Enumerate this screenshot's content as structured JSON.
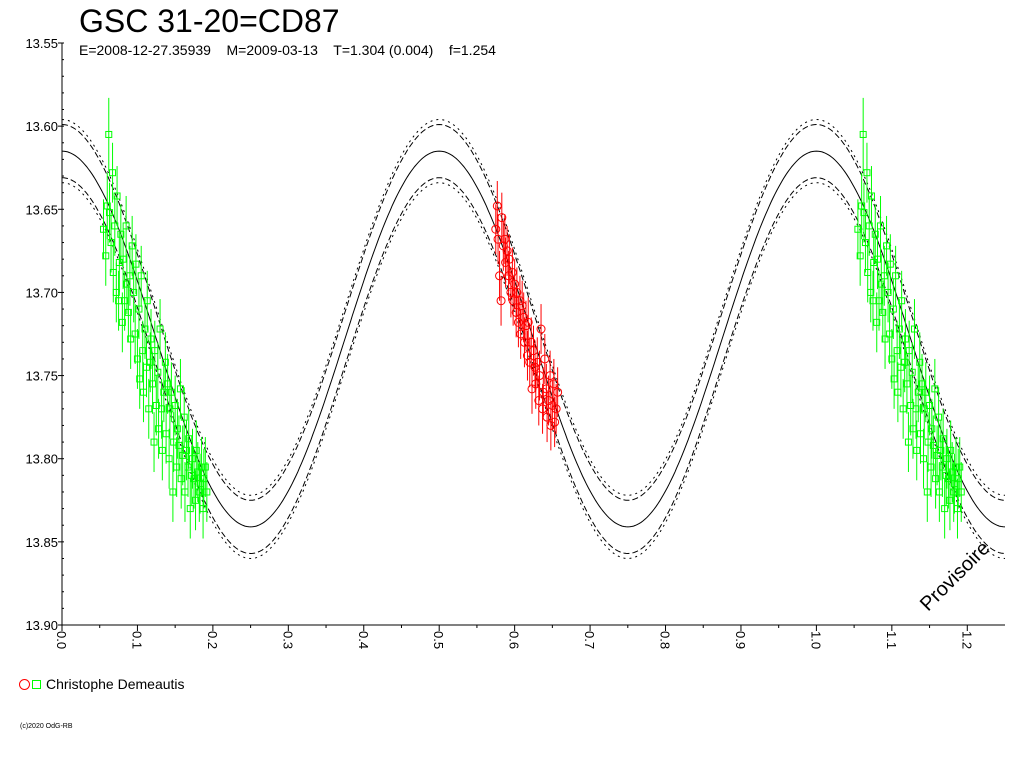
{
  "title": "GSC 31-20=CD87",
  "subtitle": "E=2008-12-27.35939    M=2009-03-13    T=1.304 (0.004)    f=1.254",
  "watermark": "Provisoire",
  "legend": {
    "label": "Christophe Demeautis"
  },
  "footer": "(c)2020 OdG-RB",
  "colors": {
    "series_green": "#00ff00",
    "series_red": "#ff0000",
    "axis": "#000000",
    "background": "#ffffff"
  },
  "chart_data": {
    "type": "scatter",
    "title": "GSC 31-20=CD87",
    "xlabel": "",
    "ylabel": "",
    "xlim": [
      0.0,
      1.25
    ],
    "ylim": [
      13.9,
      13.55
    ],
    "y_inverted": true,
    "grid": false,
    "x_ticks": [
      "0.0",
      "0.1",
      "0.2",
      "0.3",
      "0.4",
      "0.5",
      "0.6",
      "0.7",
      "0.8",
      "0.9",
      "1.0",
      "1.1",
      "1.2"
    ],
    "y_ticks": [
      "13.55",
      "13.60",
      "13.65",
      "13.70",
      "13.75",
      "13.80",
      "13.85",
      "13.90"
    ],
    "model": {
      "shape": "cosine",
      "period_in_phase": 0.5,
      "mean": 13.728,
      "semi_amplitude": 0.113,
      "max_brightness_phases": [
        0.0,
        0.5,
        1.0
      ],
      "envelope_halfwidth": 0.016,
      "envelope2_halfwidth": 0.019
    },
    "series": [
      {
        "name": "Christophe Demeautis",
        "marker": "square",
        "color": "#00ff00",
        "x": [
          0.055,
          0.058,
          0.06,
          0.062,
          0.063,
          0.065,
          0.067,
          0.068,
          0.07,
          0.072,
          0.073,
          0.075,
          0.076,
          0.078,
          0.08,
          0.081,
          0.083,
          0.085,
          0.086,
          0.088,
          0.09,
          0.091,
          0.093,
          0.095,
          0.097,
          0.098,
          0.1,
          0.102,
          0.103,
          0.105,
          0.107,
          0.108,
          0.11,
          0.112,
          0.113,
          0.115,
          0.117,
          0.118,
          0.12,
          0.122,
          0.123,
          0.125,
          0.127,
          0.128,
          0.13,
          0.132,
          0.133,
          0.135,
          0.137,
          0.138,
          0.14,
          0.142,
          0.143,
          0.145,
          0.147,
          0.148,
          0.15,
          0.152,
          0.153,
          0.155,
          0.157,
          0.158,
          0.16,
          0.162,
          0.163,
          0.165,
          0.167,
          0.168,
          0.17,
          0.172,
          0.173,
          0.175,
          0.177,
          0.178,
          0.18,
          0.182,
          0.183,
          0.185,
          0.187,
          0.188,
          0.19,
          0.192
        ],
        "y": [
          13.662,
          13.678,
          13.648,
          13.605,
          13.652,
          13.67,
          13.628,
          13.688,
          13.66,
          13.7,
          13.642,
          13.705,
          13.682,
          13.665,
          13.718,
          13.68,
          13.705,
          13.66,
          13.695,
          13.712,
          13.69,
          13.728,
          13.672,
          13.7,
          13.725,
          13.683,
          13.74,
          13.71,
          13.752,
          13.69,
          13.735,
          13.76,
          13.722,
          13.745,
          13.705,
          13.77,
          13.742,
          13.728,
          13.755,
          13.79,
          13.735,
          13.768,
          13.748,
          13.782,
          13.722,
          13.77,
          13.795,
          13.76,
          13.742,
          13.785,
          13.755,
          13.8,
          13.77,
          13.76,
          13.82,
          13.79,
          13.768,
          13.805,
          13.782,
          13.792,
          13.758,
          13.812,
          13.798,
          13.775,
          13.82,
          13.795,
          13.805,
          13.788,
          13.83,
          13.81,
          13.8,
          13.812,
          13.825,
          13.795,
          13.808,
          13.82,
          13.815,
          13.805,
          13.83,
          13.812,
          13.805,
          13.82
        ],
        "err": [
          0.018,
          0.018,
          0.02,
          0.022,
          0.018,
          0.018,
          0.018,
          0.018,
          0.018,
          0.018,
          0.018,
          0.018,
          0.018,
          0.018,
          0.018,
          0.018,
          0.018,
          0.018,
          0.018,
          0.018,
          0.018,
          0.018,
          0.018,
          0.018,
          0.018,
          0.018,
          0.018,
          0.018,
          0.018,
          0.018,
          0.018,
          0.018,
          0.018,
          0.018,
          0.018,
          0.018,
          0.018,
          0.018,
          0.018,
          0.018,
          0.018,
          0.018,
          0.018,
          0.018,
          0.018,
          0.018,
          0.018,
          0.018,
          0.018,
          0.018,
          0.018,
          0.018,
          0.018,
          0.018,
          0.018,
          0.018,
          0.018,
          0.018,
          0.018,
          0.018,
          0.018,
          0.018,
          0.018,
          0.018,
          0.018,
          0.018,
          0.018,
          0.018,
          0.018,
          0.018,
          0.018,
          0.018,
          0.018,
          0.018,
          0.018,
          0.018,
          0.018,
          0.018,
          0.018,
          0.018,
          0.018,
          0.018
        ]
      },
      {
        "name": "Christophe Demeautis",
        "marker": "circle",
        "color": "#ff0000",
        "x": [
          0.575,
          0.577,
          0.578,
          0.58,
          0.582,
          0.583,
          0.585,
          0.587,
          0.588,
          0.59,
          0.592,
          0.593,
          0.595,
          0.597,
          0.598,
          0.6,
          0.602,
          0.603,
          0.605,
          0.607,
          0.608,
          0.61,
          0.612,
          0.613,
          0.615,
          0.617,
          0.618,
          0.62,
          0.622,
          0.623,
          0.625,
          0.627,
          0.628,
          0.63,
          0.632,
          0.633,
          0.635,
          0.637,
          0.638,
          0.64,
          0.642,
          0.643,
          0.645,
          0.647,
          0.648,
          0.65,
          0.652,
          0.653,
          0.655,
          0.657
        ],
        "y": [
          13.662,
          13.648,
          13.668,
          13.69,
          13.705,
          13.655,
          13.672,
          13.668,
          13.682,
          13.675,
          13.69,
          13.68,
          13.7,
          13.688,
          13.705,
          13.695,
          13.712,
          13.7,
          13.718,
          13.705,
          13.725,
          13.708,
          13.715,
          13.73,
          13.72,
          13.738,
          13.718,
          13.742,
          13.73,
          13.758,
          13.735,
          13.745,
          13.755,
          13.742,
          13.765,
          13.75,
          13.722,
          13.77,
          13.76,
          13.74,
          13.758,
          13.775,
          13.765,
          13.75,
          13.78,
          13.768,
          13.755,
          13.778,
          13.77,
          13.76
        ],
        "err": [
          0.015,
          0.015,
          0.015,
          0.015,
          0.015,
          0.015,
          0.015,
          0.015,
          0.015,
          0.015,
          0.015,
          0.015,
          0.015,
          0.015,
          0.015,
          0.015,
          0.015,
          0.015,
          0.015,
          0.015,
          0.015,
          0.015,
          0.015,
          0.015,
          0.015,
          0.015,
          0.015,
          0.015,
          0.015,
          0.015,
          0.015,
          0.015,
          0.015,
          0.015,
          0.015,
          0.015,
          0.015,
          0.015,
          0.015,
          0.015,
          0.015,
          0.015,
          0.015,
          0.015,
          0.015,
          0.015,
          0.015,
          0.015,
          0.015,
          0.015
        ]
      }
    ]
  }
}
